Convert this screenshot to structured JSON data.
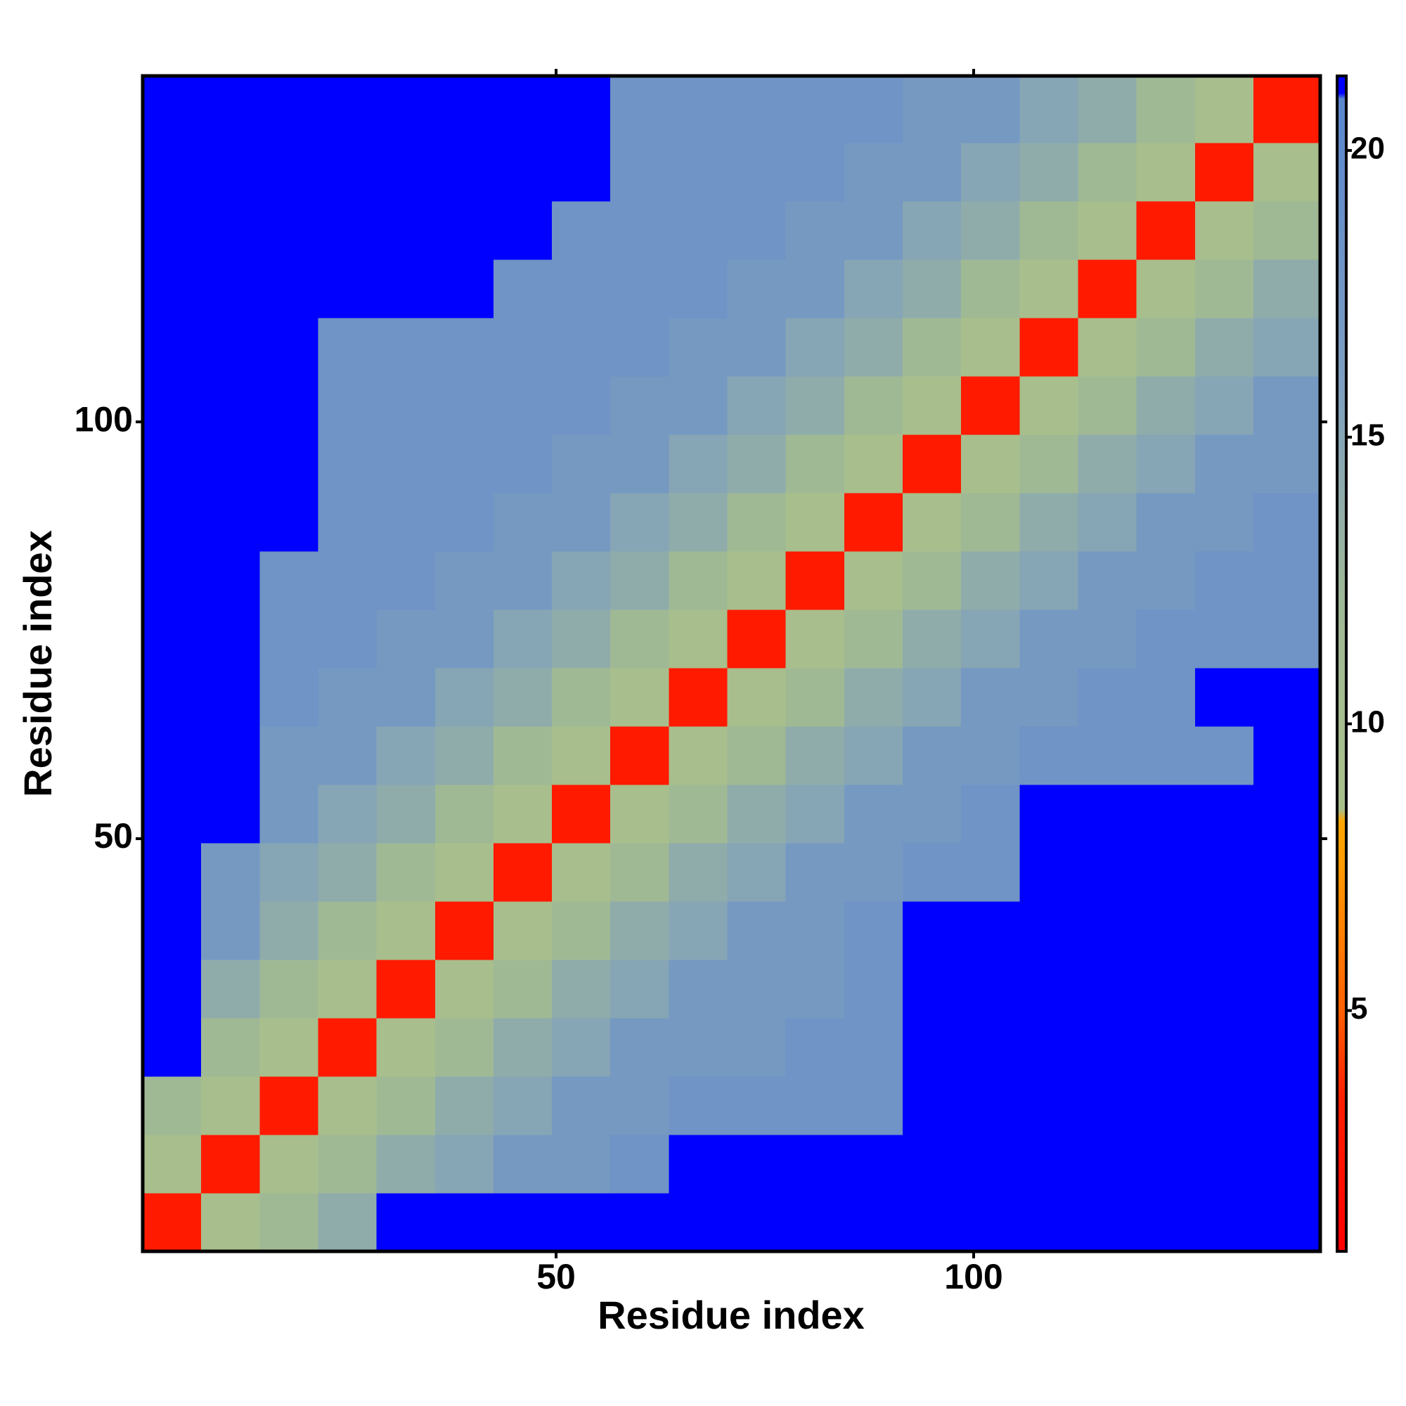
{
  "chart_data": {
    "type": "heatmap",
    "x_label": "Residue index",
    "y_label": "Residue index",
    "xlim": [
      0.5,
      141.5
    ],
    "ylim": [
      0.5,
      141.5
    ],
    "xticks": [
      50,
      100
    ],
    "yticks": [
      50,
      100
    ],
    "x_bins": [
      0.5,
      7.5,
      14.5,
      21.5,
      28.5,
      35.5,
      42.5,
      49.5,
      56.5,
      63.5,
      70.5,
      77.5,
      84.5,
      91.5,
      98.5,
      105.5,
      112.5,
      119.5,
      126.5,
      133.5,
      141.5
    ],
    "y_bins": [
      0.5,
      7.5,
      14.5,
      21.5,
      28.5,
      35.5,
      42.5,
      49.5,
      56.5,
      63.5,
      70.5,
      77.5,
      84.5,
      91.5,
      98.5,
      105.5,
      112.5,
      119.5,
      126.5,
      133.5,
      141.5
    ],
    "values": [
      [
        3,
        9,
        12,
        14,
        21,
        21,
        21,
        21,
        21,
        21,
        21,
        21,
        21,
        21,
        21,
        21,
        21,
        21,
        21,
        21
      ],
      [
        9,
        3,
        9,
        12,
        14,
        15,
        17,
        17,
        18,
        21,
        21,
        21,
        21,
        21,
        21,
        21,
        21,
        21,
        21,
        21
      ],
      [
        12,
        9,
        3,
        9,
        12,
        14,
        15,
        17,
        17,
        18,
        18,
        18,
        18,
        21,
        21,
        21,
        21,
        21,
        21,
        21
      ],
      [
        21,
        12,
        9,
        3,
        9,
        12,
        14,
        15,
        17,
        17,
        17,
        18,
        18,
        21,
        21,
        21,
        21,
        21,
        21,
        21
      ],
      [
        21,
        14,
        12,
        9,
        3,
        9,
        12,
        14,
        15,
        17,
        17,
        17,
        18,
        21,
        21,
        21,
        21,
        21,
        21,
        21
      ],
      [
        21,
        17,
        14,
        12,
        9,
        3,
        9,
        12,
        14,
        15,
        17,
        17,
        18,
        21,
        21,
        21,
        21,
        21,
        21,
        21
      ],
      [
        21,
        17,
        15,
        14,
        12,
        9,
        3,
        9,
        12,
        14,
        15,
        17,
        17,
        18,
        18,
        21,
        21,
        21,
        21,
        21
      ],
      [
        21,
        21,
        17,
        15,
        14,
        12,
        9,
        3,
        9,
        12,
        14,
        15,
        17,
        17,
        18,
        21,
        21,
        21,
        21,
        21
      ],
      [
        21,
        21,
        17,
        17,
        15,
        14,
        12,
        9,
        3,
        9,
        12,
        14,
        15,
        17,
        17,
        18,
        18,
        18,
        18,
        21
      ],
      [
        21,
        21,
        18,
        17,
        17,
        15,
        14,
        12,
        9,
        3,
        9,
        12,
        14,
        15,
        17,
        17,
        18,
        18,
        21,
        21
      ],
      [
        21,
        21,
        18,
        18,
        17,
        17,
        15,
        14,
        12,
        9,
        3,
        9,
        12,
        14,
        15,
        17,
        17,
        18,
        18,
        18
      ],
      [
        21,
        21,
        18,
        18,
        18,
        17,
        17,
        15,
        14,
        12,
        9,
        3,
        9,
        12,
        14,
        15,
        17,
        17,
        18,
        18
      ],
      [
        21,
        21,
        21,
        18,
        18,
        18,
        17,
        17,
        15,
        14,
        12,
        9,
        3,
        9,
        12,
        14,
        15,
        17,
        17,
        18
      ],
      [
        21,
        21,
        21,
        18,
        18,
        18,
        18,
        17,
        17,
        15,
        14,
        12,
        9,
        3,
        9,
        12,
        14,
        15,
        17,
        17
      ],
      [
        21,
        21,
        21,
        18,
        18,
        18,
        18,
        18,
        17,
        17,
        15,
        14,
        12,
        9,
        3,
        9,
        12,
        14,
        15,
        17
      ],
      [
        21,
        21,
        21,
        18,
        18,
        18,
        18,
        18,
        18,
        17,
        17,
        15,
        14,
        12,
        9,
        3,
        9,
        12,
        14,
        15
      ],
      [
        21,
        21,
        21,
        21,
        21,
        21,
        18,
        18,
        18,
        18,
        17,
        17,
        15,
        14,
        12,
        9,
        3,
        9,
        12,
        14
      ],
      [
        21,
        21,
        21,
        21,
        21,
        21,
        21,
        18,
        18,
        18,
        18,
        17,
        17,
        15,
        14,
        12,
        9,
        3,
        9,
        12
      ],
      [
        21,
        21,
        21,
        21,
        21,
        21,
        21,
        21,
        18,
        18,
        18,
        18,
        17,
        17,
        15,
        14,
        12,
        9,
        3,
        9
      ],
      [
        21,
        21,
        21,
        21,
        21,
        21,
        21,
        21,
        18,
        18,
        18,
        18,
        18,
        17,
        17,
        15,
        14,
        12,
        9,
        3
      ]
    ],
    "zlim": [
      0.8,
      21.3
    ],
    "zticks": [
      5,
      10,
      15,
      20
    ],
    "colorscale": [
      {
        "value": 0.8,
        "color": "#ff0000"
      },
      {
        "value": 3.5,
        "color": "#ff2000"
      },
      {
        "value": 5,
        "color": "#ff6000"
      },
      {
        "value": 7.5,
        "color": "#ff9900"
      },
      {
        "value": 8.3,
        "color": "#ffa500"
      },
      {
        "value": 8.5,
        "color": "#a9bf8a"
      },
      {
        "value": 12,
        "color": "#a0b995"
      },
      {
        "value": 16,
        "color": "#7d9ec0"
      },
      {
        "value": 20.9,
        "color": "#5a86cc"
      },
      {
        "value": 21,
        "color": "#0000ff"
      },
      {
        "value": 21.3,
        "color": "#0000ff"
      }
    ]
  }
}
